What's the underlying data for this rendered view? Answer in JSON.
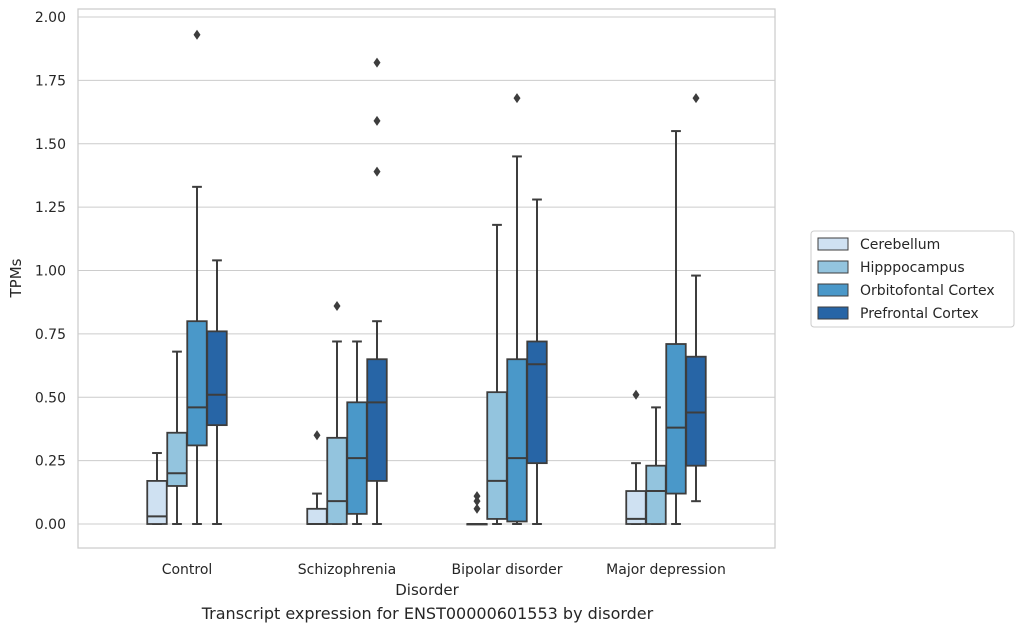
{
  "chart_data": {
    "type": "box",
    "caption": "Transcript expression for ENST00000601553 by disorder",
    "xlabel": "Disorder",
    "ylabel": "TPMs",
    "ylim": [
      -0.095,
      2.03
    ],
    "yticks": [
      "0.00",
      "0.25",
      "0.50",
      "0.75",
      "1.00",
      "1.25",
      "1.50",
      "1.75",
      "2.00"
    ],
    "grid": "horizontal",
    "legend_position": "right",
    "categories": [
      "Control",
      "Schizophrenia",
      "Bipolar disorder",
      "Major depression"
    ],
    "series": [
      {
        "name": "Cerebellum",
        "color": "#cfe1f2",
        "boxes": [
          {
            "whislo": 0,
            "q1": 0,
            "med": 0.03,
            "q3": 0.17,
            "whishi": 0.28,
            "fliers": []
          },
          {
            "whislo": 0,
            "q1": 0,
            "med": 0,
            "q3": 0.06,
            "whishi": 0.12,
            "fliers": [
              0.35
            ]
          },
          {
            "whislo": 0,
            "q1": 0,
            "med": 0,
            "q3": 0,
            "whishi": 0,
            "fliers": [
              0.06,
              0.09,
              0.11
            ]
          },
          {
            "whislo": 0,
            "q1": 0,
            "med": 0.02,
            "q3": 0.13,
            "whishi": 0.24,
            "fliers": [
              0.51
            ]
          }
        ]
      },
      {
        "name": "Hipppocampus",
        "color": "#93c4de",
        "boxes": [
          {
            "whislo": 0,
            "q1": 0.15,
            "med": 0.2,
            "q3": 0.36,
            "whishi": 0.68,
            "fliers": []
          },
          {
            "whislo": 0,
            "q1": 0,
            "med": 0.09,
            "q3": 0.34,
            "whishi": 0.72,
            "fliers": [
              0.86
            ]
          },
          {
            "whislo": 0,
            "q1": 0.02,
            "med": 0.17,
            "q3": 0.52,
            "whishi": 1.18,
            "fliers": []
          },
          {
            "whislo": 0,
            "q1": 0,
            "med": 0.13,
            "q3": 0.23,
            "whishi": 0.46,
            "fliers": []
          }
        ]
      },
      {
        "name": "Orbitofontal Cortex",
        "color": "#4a98c9",
        "boxes": [
          {
            "whislo": 0,
            "q1": 0.31,
            "med": 0.46,
            "q3": 0.8,
            "whishi": 1.33,
            "fliers": [
              1.93
            ]
          },
          {
            "whislo": 0,
            "q1": 0.04,
            "med": 0.26,
            "q3": 0.48,
            "whishi": 0.72,
            "fliers": []
          },
          {
            "whislo": 0,
            "q1": 0.01,
            "med": 0.26,
            "q3": 0.65,
            "whishi": 1.45,
            "fliers": [
              1.68
            ]
          },
          {
            "whislo": 0,
            "q1": 0.12,
            "med": 0.38,
            "q3": 0.71,
            "whishi": 1.55,
            "fliers": []
          }
        ]
      },
      {
        "name": "Prefrontal Cortex",
        "color": "#2765a6",
        "boxes": [
          {
            "whislo": 0,
            "q1": 0.39,
            "med": 0.51,
            "q3": 0.76,
            "whishi": 1.04,
            "fliers": []
          },
          {
            "whislo": 0,
            "q1": 0.17,
            "med": 0.48,
            "q3": 0.65,
            "whishi": 0.8,
            "fliers": [
              1.39,
              1.59,
              1.82
            ]
          },
          {
            "whislo": 0,
            "q1": 0.24,
            "med": 0.63,
            "q3": 0.72,
            "whishi": 1.28,
            "fliers": []
          },
          {
            "whislo": 0.09,
            "q1": 0.23,
            "med": 0.44,
            "q3": 0.66,
            "whishi": 0.98,
            "fliers": [
              1.68
            ]
          }
        ]
      }
    ]
  }
}
